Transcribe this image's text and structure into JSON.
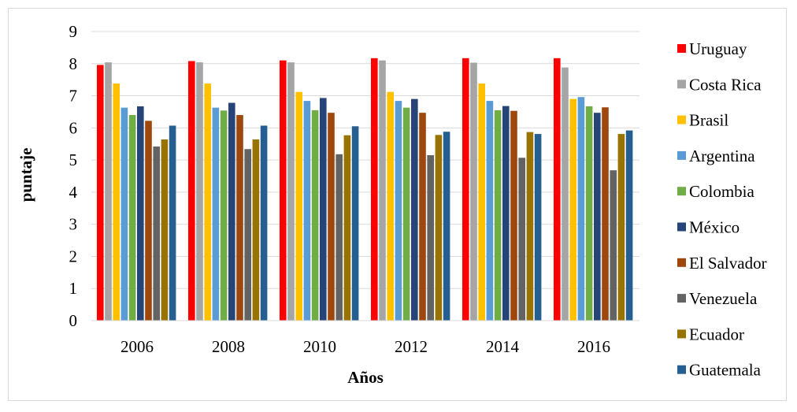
{
  "chart_data": {
    "type": "bar",
    "title": "",
    "xlabel": "Años",
    "ylabel": "puntaje",
    "ylim": [
      0,
      9
    ],
    "yticks": [
      "0",
      "1",
      "2",
      "3",
      "4",
      "5",
      "6",
      "7",
      "8",
      "9"
    ],
    "grid": true,
    "legend_position": "right",
    "categories": [
      "2006",
      "2008",
      "2010",
      "2012",
      "2014",
      "2016"
    ],
    "series": [
      {
        "name": "Uruguay",
        "color": "#ff0000",
        "values": [
          7.96,
          8.08,
          8.1,
          8.17,
          8.17,
          8.17
        ]
      },
      {
        "name": "Costa Rica",
        "color": "#a5a5a5",
        "values": [
          8.04,
          8.04,
          8.04,
          8.1,
          8.03,
          7.88
        ]
      },
      {
        "name": "Brasil",
        "color": "#ffc000",
        "values": [
          7.38,
          7.38,
          7.12,
          7.12,
          7.38,
          6.9
        ]
      },
      {
        "name": "Argentina",
        "color": "#5b9bd5",
        "values": [
          6.63,
          6.63,
          6.84,
          6.84,
          6.84,
          6.96
        ]
      },
      {
        "name": "Colombia",
        "color": "#70ad47",
        "values": [
          6.4,
          6.54,
          6.55,
          6.63,
          6.55,
          6.67
        ]
      },
      {
        "name": "México",
        "color": "#264478",
        "values": [
          6.67,
          6.78,
          6.93,
          6.9,
          6.68,
          6.47
        ]
      },
      {
        "name": "El Salvador",
        "color": "#9e480e",
        "values": [
          6.22,
          6.4,
          6.47,
          6.47,
          6.53,
          6.64
        ]
      },
      {
        "name": "Venezuela",
        "color": "#636363",
        "values": [
          5.42,
          5.34,
          5.18,
          5.15,
          5.07,
          4.68
        ]
      },
      {
        "name": "Ecuador",
        "color": "#997300",
        "values": [
          5.64,
          5.64,
          5.77,
          5.78,
          5.87,
          5.81
        ]
      },
      {
        "name": "Guatemala",
        "color": "#255e91",
        "values": [
          6.07,
          6.07,
          6.05,
          5.88,
          5.81,
          5.92
        ]
      }
    ]
  }
}
